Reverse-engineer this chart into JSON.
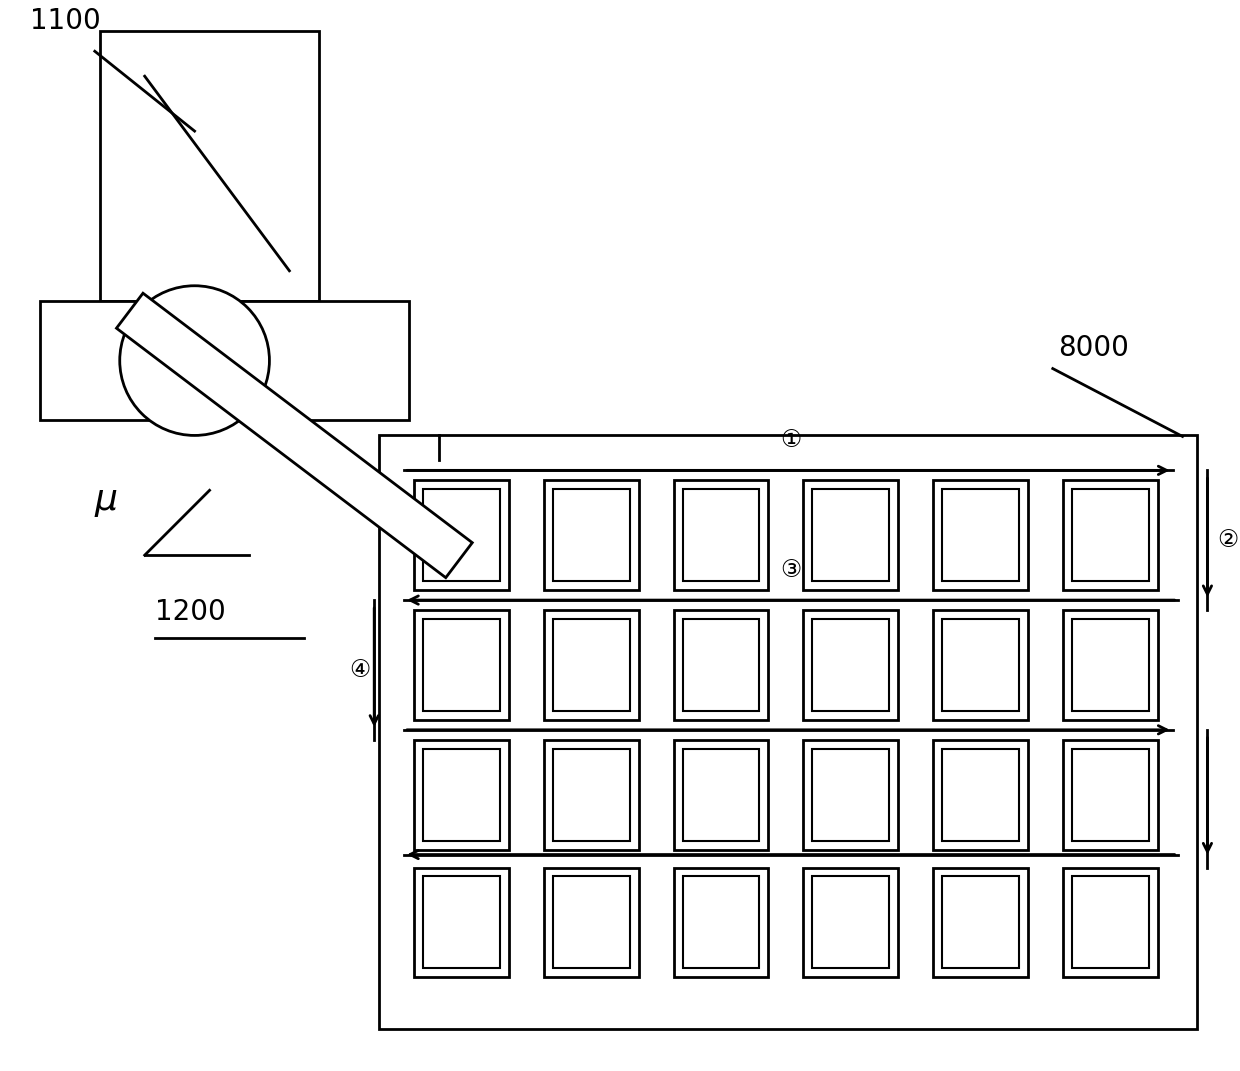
{
  "bg_color": "#ffffff",
  "line_color": "#000000",
  "label_1100": "1100",
  "label_1200": "1200",
  "label_8000": "8000",
  "label_mu": "μ",
  "circle_arrows": [
    "①",
    "②",
    "③",
    "④"
  ],
  "num_rows": 4,
  "num_cols": 6,
  "font_size_labels": 20,
  "font_size_circle": 17
}
